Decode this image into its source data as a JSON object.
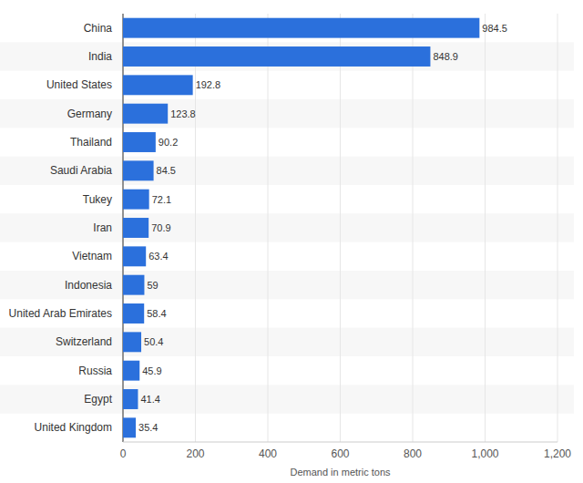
{
  "chart_data": {
    "type": "bar",
    "orientation": "horizontal",
    "categories": [
      "China",
      "India",
      "United States",
      "Germany",
      "Thailand",
      "Saudi Arabia",
      "Tukey",
      "Iran",
      "Vietnam",
      "Indonesia",
      "United Arab Emirates",
      "Switzerland",
      "Russia",
      "Egypt",
      "United Kingdom"
    ],
    "values": [
      984.5,
      848.9,
      192.8,
      123.8,
      90.2,
      84.5,
      72.1,
      70.9,
      63.4,
      59,
      58.4,
      50.4,
      45.9,
      41.4,
      35.4
    ],
    "color": "#2b70dc",
    "x_label": "Demand in metric tons",
    "xlim": [
      0,
      1200
    ],
    "xticks": [
      0,
      200,
      400,
      600,
      800,
      {
        "value": 1000,
        "label": "1,000"
      },
      {
        "value": 1200,
        "label": "1,200"
      }
    ],
    "grid": true,
    "data_labels": true
  }
}
